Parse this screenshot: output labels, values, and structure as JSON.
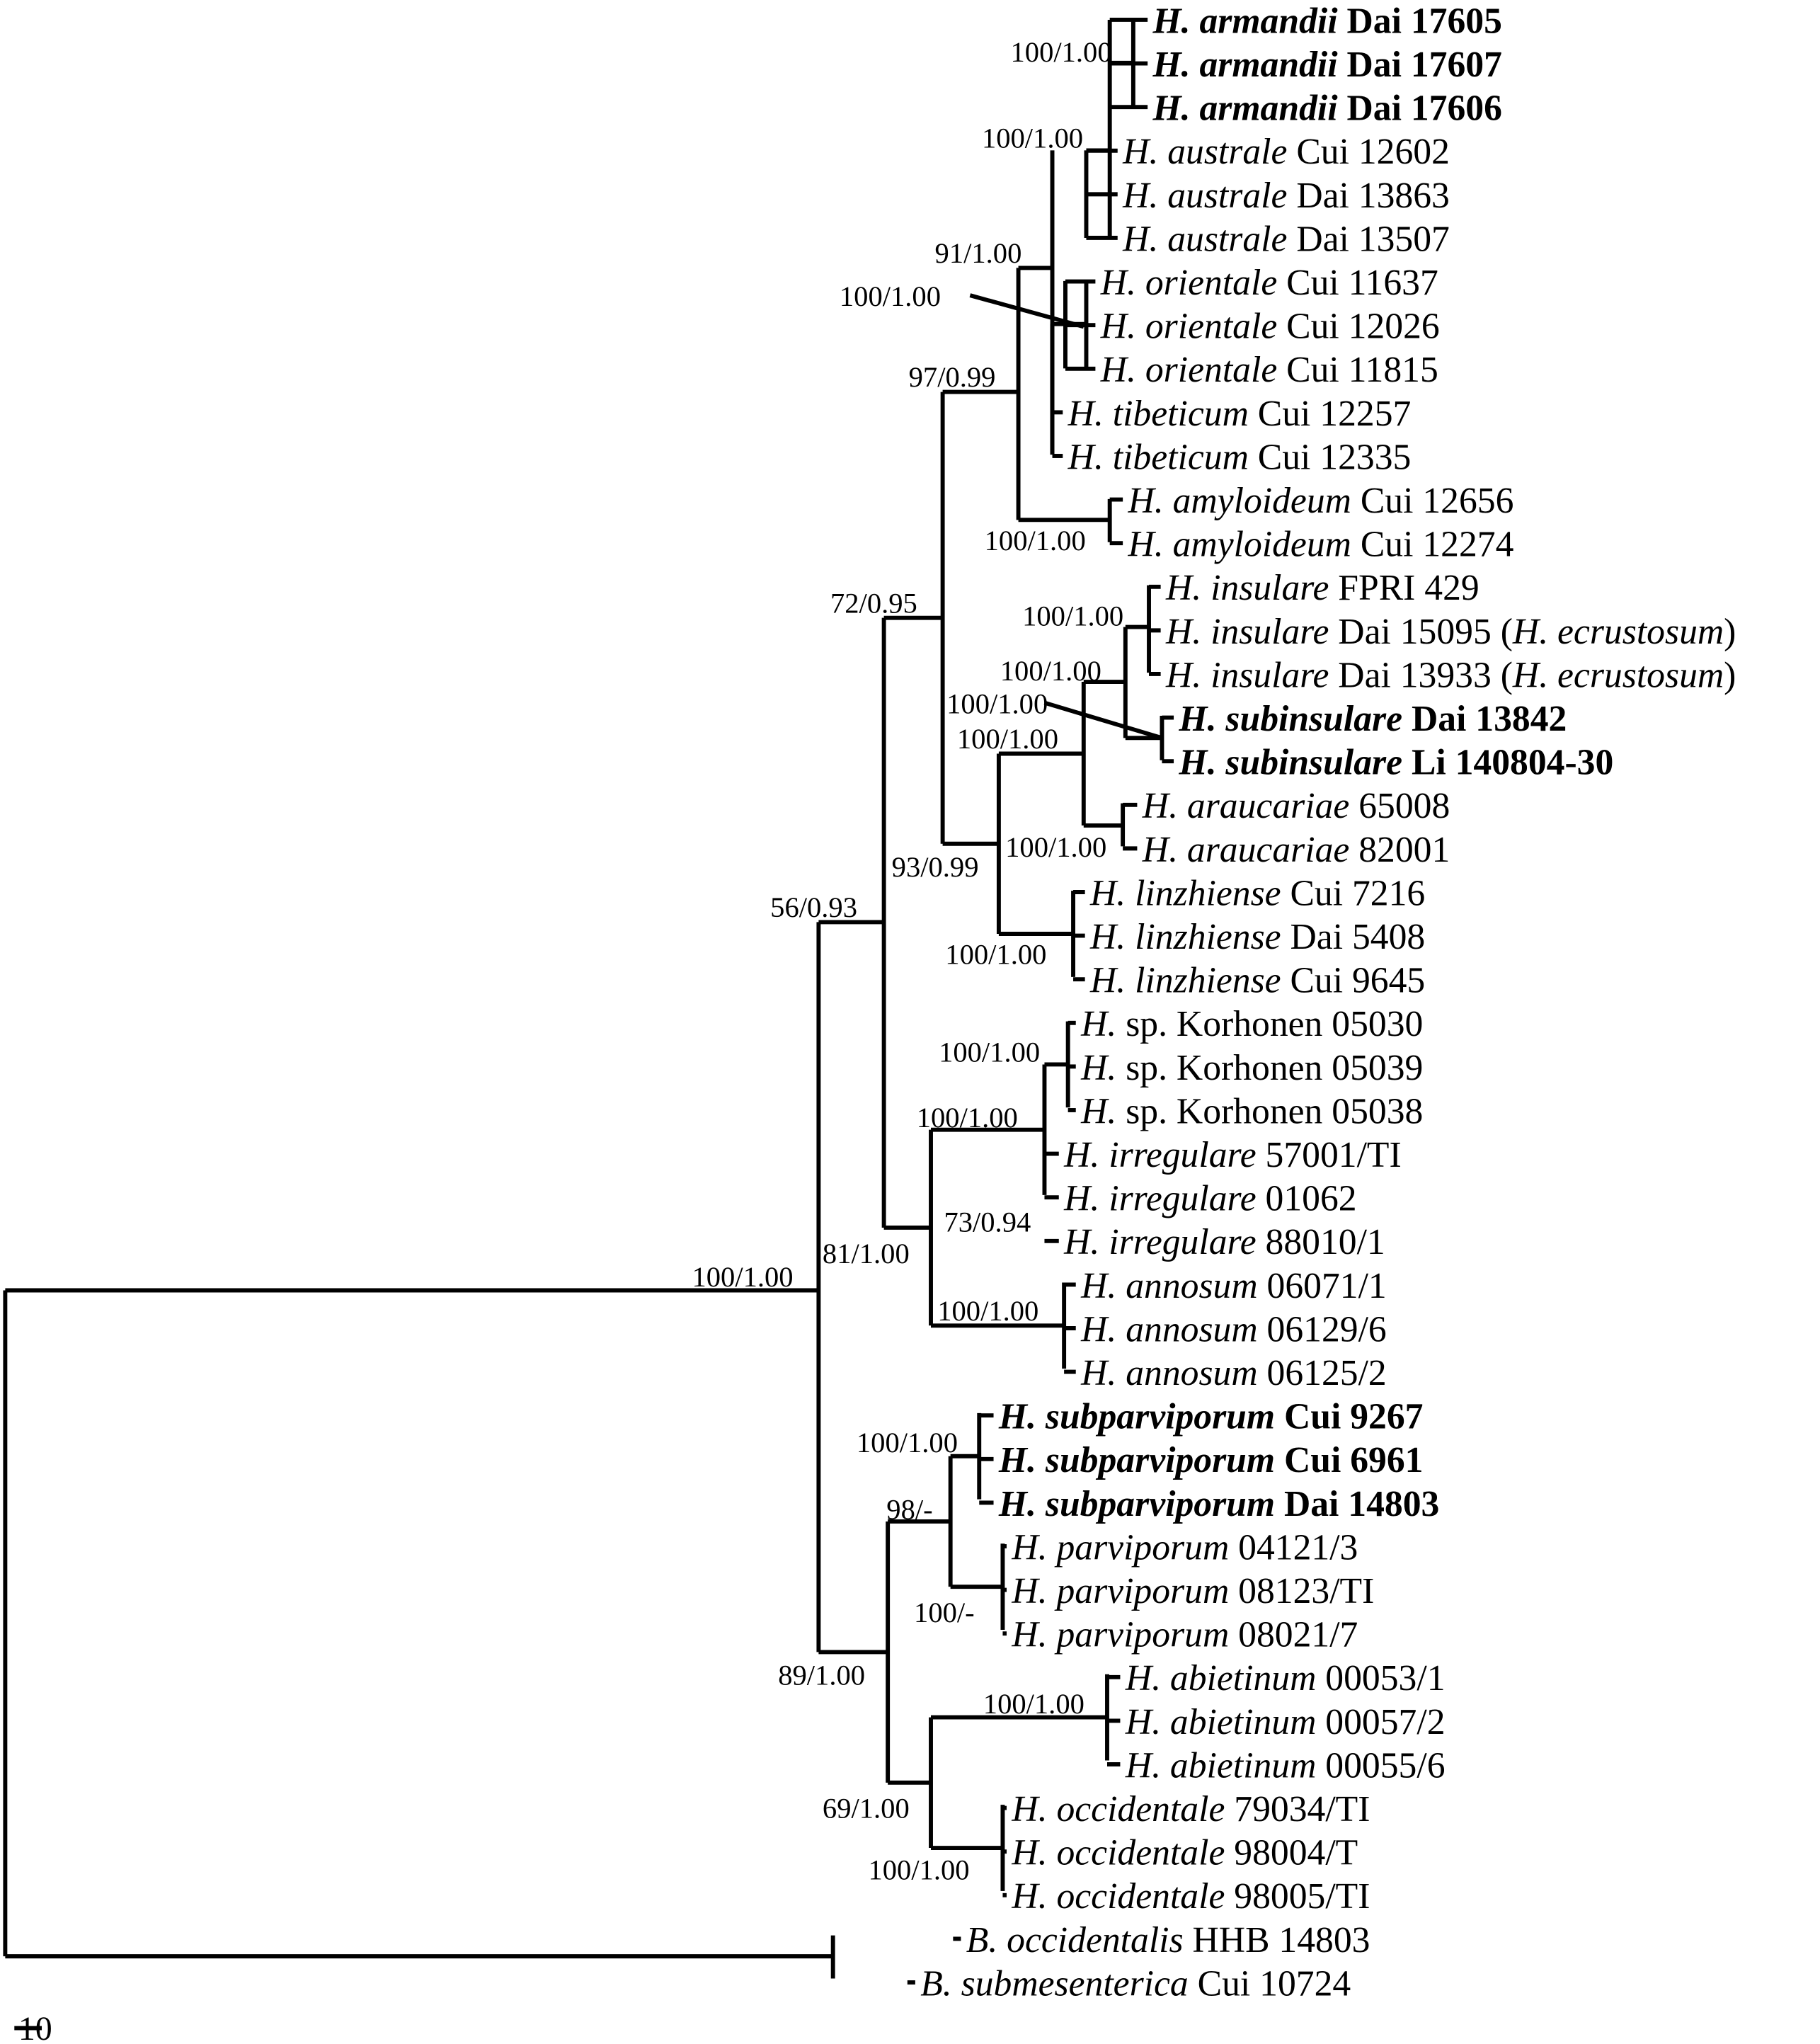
{
  "taxa": [
    {
      "genus": "H.",
      "species": "armandii",
      "voucher": "Dai 17605",
      "bold": true
    },
    {
      "genus": "H.",
      "species": "armandii",
      "voucher": "Dai 17607",
      "bold": true
    },
    {
      "genus": "H.",
      "species": "armandii",
      "voucher": "Dai 17606",
      "bold": true
    },
    {
      "genus": "H.",
      "species": "australe",
      "voucher": "Cui 12602"
    },
    {
      "genus": "H.",
      "species": "australe",
      "voucher": "Dai 13863"
    },
    {
      "genus": "H.",
      "species": "australe",
      "voucher": "Dai 13507"
    },
    {
      "genus": "H.",
      "species": "orientale",
      "voucher": "Cui 11637"
    },
    {
      "genus": "H.",
      "species": "orientale",
      "voucher": "Cui 12026"
    },
    {
      "genus": "H.",
      "species": "orientale",
      "voucher": "Cui 11815"
    },
    {
      "genus": "H.",
      "species": "tibeticum",
      "voucher": "Cui 12257"
    },
    {
      "genus": "H.",
      "species": "tibeticum",
      "voucher": "Cui 12335"
    },
    {
      "genus": "H.",
      "species": "amyloideum",
      "voucher": "Cui 12656"
    },
    {
      "genus": "H.",
      "species": "amyloideum",
      "voucher": "Cui 12274"
    },
    {
      "genus": "H.",
      "species": "insulare",
      "voucher": "FPRI 429"
    },
    {
      "genus": "H.",
      "species": "insulare",
      "voucher": "Dai 15095 (",
      "syn_genus": "H.",
      "syn_species": "ecrustosum",
      "syn_close": ")"
    },
    {
      "genus": "H.",
      "species": "insulare",
      "voucher": "Dai 13933 (",
      "syn_genus": "H.",
      "syn_species": "ecrustosum",
      "syn_close": ")"
    },
    {
      "genus": "H.",
      "species": "subinsulare",
      "voucher": "Dai 13842",
      "bold": true
    },
    {
      "genus": "H.",
      "species": "subinsulare",
      "voucher": "Li 140804-30",
      "bold": true
    },
    {
      "genus": "H.",
      "species": "araucariae",
      "voucher": "65008"
    },
    {
      "genus": "H.",
      "species": "araucariae",
      "voucher": "82001"
    },
    {
      "genus": "H.",
      "species": "linzhiense",
      "voucher": "Cui 7216"
    },
    {
      "genus": "H.",
      "species": "linzhiense",
      "voucher": "Dai 5408"
    },
    {
      "genus": "H.",
      "species": "linzhiense",
      "voucher": "Cui 9645"
    },
    {
      "genus": "H.",
      "species": "",
      "voucher": "sp. Korhonen 05030"
    },
    {
      "genus": "H.",
      "species": "",
      "voucher": "sp. Korhonen 05039"
    },
    {
      "genus": "H.",
      "species": "",
      "voucher": "sp. Korhonen 05038"
    },
    {
      "genus": "H.",
      "species": "irregulare",
      "voucher": "57001/TI"
    },
    {
      "genus": "H.",
      "species": "irregulare",
      "voucher": "01062"
    },
    {
      "genus": "H.",
      "species": "irregulare",
      "voucher": "88010/1"
    },
    {
      "genus": "H.",
      "species": "annosum",
      "voucher": "06071/1"
    },
    {
      "genus": "H.",
      "species": "annosum",
      "voucher": "06129/6"
    },
    {
      "genus": "H.",
      "species": "annosum",
      "voucher": "06125/2"
    },
    {
      "genus": "H.",
      "species": "subparviporum",
      "voucher": "Cui 9267",
      "bold": true
    },
    {
      "genus": "H.",
      "species": "subparviporum",
      "voucher": "Cui 6961",
      "bold": true
    },
    {
      "genus": "H.",
      "species": "subparviporum",
      "voucher": "Dai 14803",
      "bold": true
    },
    {
      "genus": "H.",
      "species": "parviporum",
      "voucher": "04121/3"
    },
    {
      "genus": "H.",
      "species": "parviporum",
      "voucher": "08123/TI"
    },
    {
      "genus": "H.",
      "species": "parviporum",
      "voucher": "08021/7"
    },
    {
      "genus": "H.",
      "species": "abietinum",
      "voucher": "00053/1"
    },
    {
      "genus": "H.",
      "species": "abietinum",
      "voucher": "00057/2"
    },
    {
      "genus": "H.",
      "species": "abietinum",
      "voucher": "00055/6"
    },
    {
      "genus": "H.",
      "species": "occidentale",
      "voucher": "79034/TI"
    },
    {
      "genus": "H.",
      "species": "occidentale",
      "voucher": "98004/T"
    },
    {
      "genus": "H.",
      "species": "occidentale",
      "voucher": "98005/TI"
    },
    {
      "genus": "B.",
      "species": "occidentalis",
      "voucher": "HHB 14803"
    },
    {
      "genus": "B.",
      "species": "submesenterica",
      "voucher": "Cui 10724"
    }
  ],
  "support_values": [
    "100/1.00",
    "100/1.00",
    "91/1.00",
    "100/1.00",
    "97/0.99",
    "100/1.00",
    "72/0.95",
    "100/1.00",
    "100/1.00",
    "100/1.00",
    "100/1.00",
    "100/1.00",
    "93/0.99",
    "56/0.93",
    "100/1.00",
    "100/1.00",
    "100/1.00",
    "73/0.94",
    "81/1.00",
    "100/1.00",
    "100/1.00",
    "100/1.00",
    "98/-",
    "100/-",
    "89/1.00",
    "100/1.00",
    "69/1.00",
    "100/1.00"
  ],
  "scale_bar": {
    "label": "10"
  }
}
